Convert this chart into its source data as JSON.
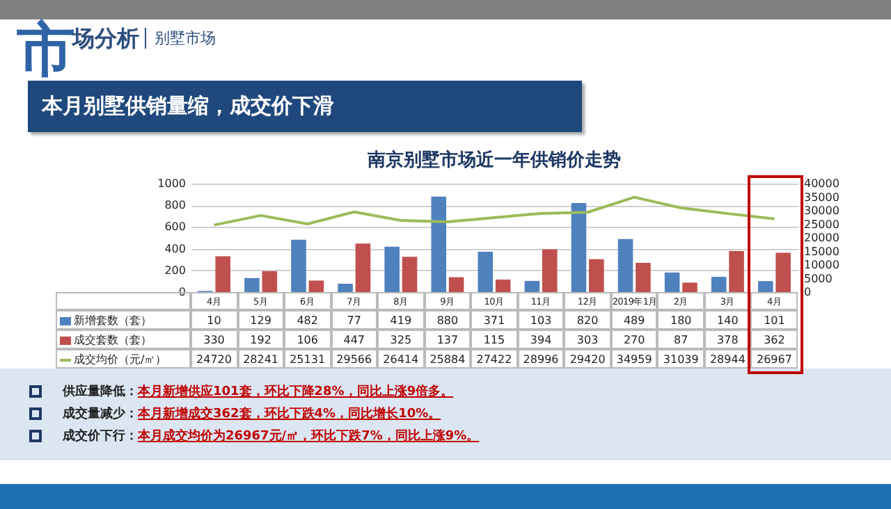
{
  "chart_data": {
    "type": "bar",
    "title": "南京别墅市场近一年供销价走势",
    "annotations": [
      "市场分析",
      "别墅市场",
      "本月别墅供销量缩，成交价下滑",
      "供应量降低：",
      "本月新增供应101套，环比下降28%，同比上涨9倍多。",
      "成交量减少：",
      "本月新增成交362套，环比下跌4%，同比增长10%。",
      "成交价下行：",
      "本月成交均价为26967元/㎡，环比下跌7%，同比上涨9%。"
    ],
    "categories": [
      "4月",
      "5月",
      "6月",
      "7月",
      "8月",
      "9月",
      "10月",
      "11月",
      "12月",
      "2019年1月",
      "2月",
      "3月",
      "4月"
    ],
    "series": [
      {
        "name": "新增套数（套）",
        "color": "#4f81bd",
        "values": [
          10,
          129,
          482,
          77,
          419,
          880,
          371,
          103,
          820,
          489,
          180,
          140,
          101
        ]
      },
      {
        "name": "成交套数（套）",
        "color": "#c0504d",
        "values": [
          330,
          192,
          106,
          447,
          325,
          137,
          115,
          394,
          303,
          270,
          87,
          378,
          362
        ]
      },
      {
        "name": "成交均价（元/㎡）",
        "color": "#9bbb59",
        "type": "line",
        "axis": "y2",
        "values": [
          24720,
          28241,
          25131,
          29566,
          26414,
          25884,
          27422,
          28996,
          29420,
          34959,
          31039,
          28944,
          26967
        ]
      }
    ],
    "ylim": [
      0,
      1000
    ],
    "yticks": [
      0,
      200,
      400,
      600,
      800,
      1000
    ],
    "y2lim": [
      0,
      40000
    ],
    "y2ticks": [
      0,
      5000,
      10000,
      15000,
      20000,
      25000,
      30000,
      35000,
      40000
    ],
    "grid": "y",
    "legend": "bottom",
    "data_labels": true,
    "marker": "none"
  }
}
